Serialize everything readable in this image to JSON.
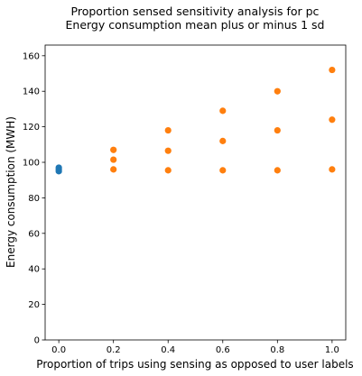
{
  "chart_data": {
    "type": "scatter",
    "title": "Proportion sensed sensitivity analysis for pc",
    "subtitle": "Energy consumption mean plus or minus 1 sd",
    "xlabel": "Proportion of trips using sensing as opposed to user labels",
    "ylabel": "Energy consumption (MWH)",
    "xlim": [
      -0.05,
      1.05
    ],
    "ylim": [
      0,
      166
    ],
    "x_ticks": [
      "0.0",
      "0.2",
      "0.4",
      "0.6",
      "0.8",
      "1.0"
    ],
    "x_tick_values": [
      0.0,
      0.2,
      0.4,
      0.6,
      0.8,
      1.0
    ],
    "y_ticks": [
      "0",
      "20",
      "40",
      "60",
      "80",
      "100",
      "120",
      "140",
      "160"
    ],
    "y_tick_values": [
      0,
      20,
      40,
      60,
      80,
      100,
      120,
      140,
      160
    ],
    "grid": false,
    "series": [
      {
        "color": "#1f77b4",
        "points": [
          {
            "x": 0.0,
            "y": 95.0
          },
          {
            "x": 0.0,
            "y": 96.0
          },
          {
            "x": 0.0,
            "y": 97.0
          }
        ]
      },
      {
        "color": "#ff7f0e",
        "points": [
          {
            "x": 0.2,
            "y": 96.0
          },
          {
            "x": 0.2,
            "y": 101.5
          },
          {
            "x": 0.2,
            "y": 107.0
          },
          {
            "x": 0.4,
            "y": 95.5
          },
          {
            "x": 0.4,
            "y": 106.5
          },
          {
            "x": 0.4,
            "y": 118.0
          },
          {
            "x": 0.6,
            "y": 95.5
          },
          {
            "x": 0.6,
            "y": 112.0
          },
          {
            "x": 0.6,
            "y": 129.0
          },
          {
            "x": 0.8,
            "y": 95.5
          },
          {
            "x": 0.8,
            "y": 118.0
          },
          {
            "x": 0.8,
            "y": 140.0
          },
          {
            "x": 1.0,
            "y": 96.0
          },
          {
            "x": 1.0,
            "y": 124.0
          },
          {
            "x": 1.0,
            "y": 152.0
          }
        ]
      }
    ]
  }
}
